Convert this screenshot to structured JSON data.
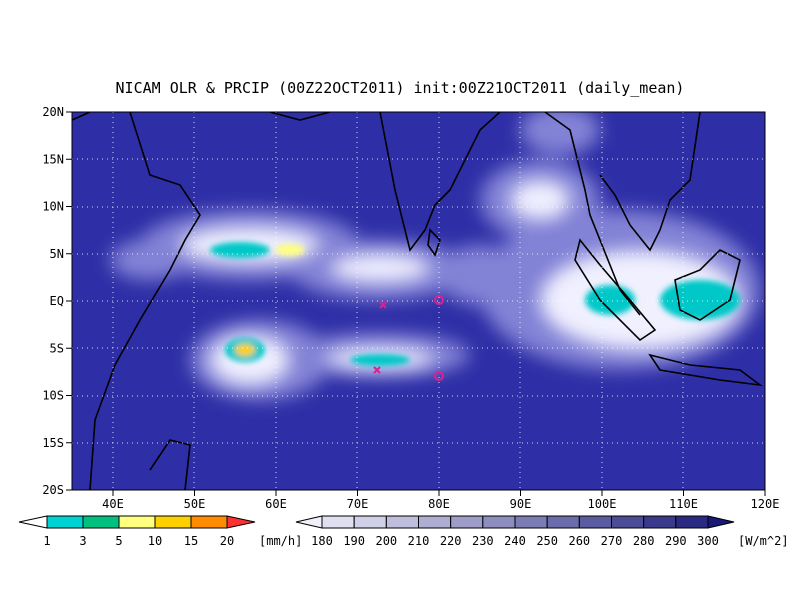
{
  "title": "NICAM OLR & PRCIP (00Z22OCT2011) init:00Z21OCT2011 (daily_mean)",
  "lat_labels": [
    "20N",
    "15N",
    "10N",
    "5N",
    "EQ",
    "5S",
    "10S",
    "15S",
    "20S"
  ],
  "lon_labels": [
    "40E",
    "50E",
    "60E",
    "70E",
    "80E",
    "90E",
    "100E",
    "110E",
    "120E"
  ],
  "precip_colorbar": {
    "labels": [
      "1",
      "3",
      "5",
      "10",
      "15",
      "20"
    ],
    "unit": "[mm/h]"
  },
  "olr_colorbar": {
    "labels": [
      "180",
      "190",
      "200",
      "210",
      "220",
      "230",
      "240",
      "250",
      "260",
      "270",
      "280",
      "290",
      "300"
    ],
    "unit": "[W/m^2]"
  }
}
